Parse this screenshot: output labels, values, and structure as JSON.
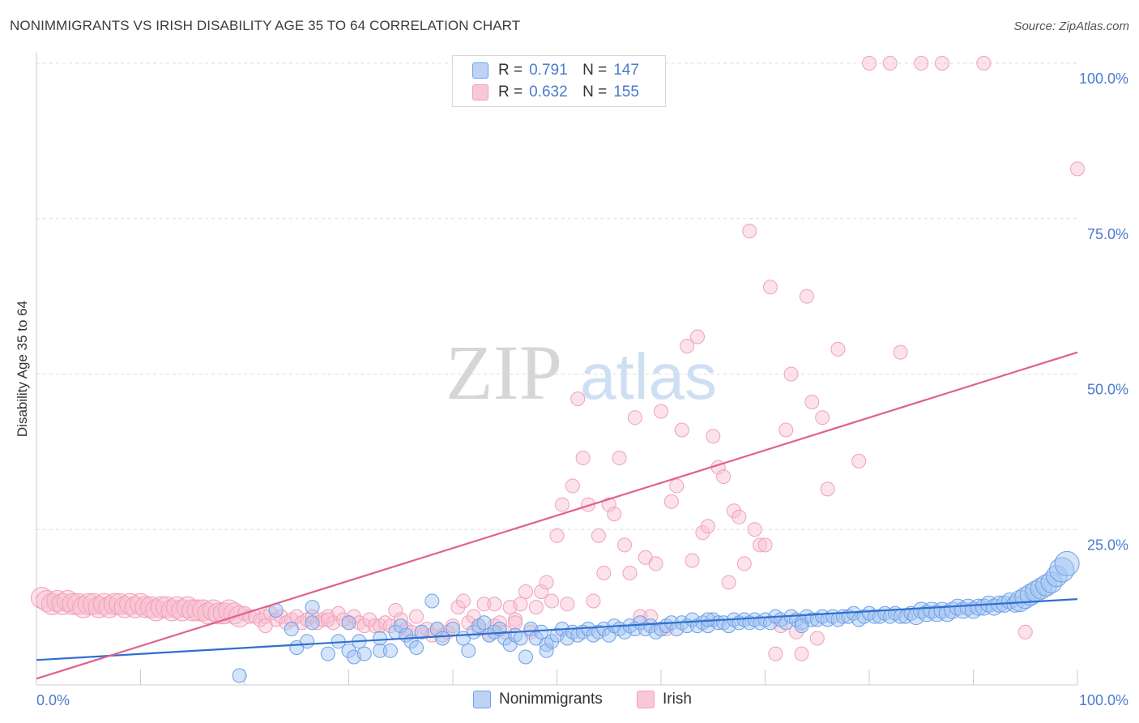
{
  "title": "NONIMMIGRANTS VS IRISH DISABILITY AGE 35 TO 64 CORRELATION CHART",
  "source": "Source: ZipAtlas.com",
  "watermark": {
    "zip": "ZIP",
    "atlas": "atlas"
  },
  "legend": {
    "r_label": "R =",
    "n_label": "N =",
    "entries": [
      {
        "r": "0.791",
        "n": "147"
      },
      {
        "r": "0.632",
        "n": "155"
      }
    ]
  },
  "chart_data": {
    "type": "scatter",
    "title": "NONIMMIGRANTS VS IRISH DISABILITY AGE 35 TO 64 CORRELATION CHART",
    "xlabel": "",
    "ylabel": "Disability Age 35 to 64",
    "xlim": [
      0,
      100
    ],
    "ylim": [
      0,
      100
    ],
    "x_tick_labels": [
      "0.0%",
      "100.0%"
    ],
    "y_ticks": [
      25,
      50,
      75,
      100
    ],
    "y_tick_labels": [
      "25.0%",
      "50.0%",
      "75.0%",
      "100.0%"
    ],
    "colors": {
      "nonimmigrants": "#6f9fe6",
      "irish": "#f0a0b8",
      "blue_line": "#2f6fd0",
      "pink_line": "#e0608f"
    },
    "series": [
      {
        "name": "Nonimmigrants",
        "trendline": {
          "x": [
            0,
            100
          ],
          "y": [
            4.0,
            13.8
          ]
        },
        "points": [
          [
            19.5,
            1.5
          ],
          [
            23,
            12
          ],
          [
            24.5,
            9
          ],
          [
            25,
            6
          ],
          [
            26,
            7
          ],
          [
            26.5,
            10
          ],
          [
            26.5,
            12.5
          ],
          [
            28,
            5
          ],
          [
            29,
            7
          ],
          [
            30,
            10
          ],
          [
            30,
            5.5
          ],
          [
            30.5,
            4.5
          ],
          [
            31,
            7
          ],
          [
            31.5,
            5
          ],
          [
            33,
            7.5
          ],
          [
            33,
            5.5
          ],
          [
            34,
            5.5
          ],
          [
            34.5,
            8.5
          ],
          [
            35,
            9.5
          ],
          [
            35.5,
            8
          ],
          [
            36,
            7
          ],
          [
            36.5,
            6
          ],
          [
            37,
            8.5
          ],
          [
            38,
            13.5
          ],
          [
            38.5,
            9
          ],
          [
            39,
            7.5
          ],
          [
            40,
            9
          ],
          [
            41,
            7.5
          ],
          [
            41.5,
            5.5
          ],
          [
            42,
            8.5
          ],
          [
            42.5,
            9.5
          ],
          [
            43,
            10
          ],
          [
            43.5,
            8
          ],
          [
            44,
            8.5
          ],
          [
            44.5,
            9
          ],
          [
            45,
            7.5
          ],
          [
            45.5,
            6.5
          ],
          [
            46,
            8
          ],
          [
            46.5,
            7.5
          ],
          [
            47,
            4.5
          ],
          [
            47.5,
            9
          ],
          [
            48,
            7.5
          ],
          [
            48.5,
            8.5
          ],
          [
            49,
            6.5
          ],
          [
            49,
            5.5
          ],
          [
            49.5,
            7
          ],
          [
            50,
            8
          ],
          [
            50.5,
            9
          ],
          [
            51,
            7.5
          ],
          [
            51.5,
            8.5
          ],
          [
            52,
            8
          ],
          [
            52.5,
            8.5
          ],
          [
            53,
            9
          ],
          [
            53.5,
            8
          ],
          [
            54,
            8.5
          ],
          [
            54.5,
            9
          ],
          [
            55,
            8
          ],
          [
            55.5,
            9.5
          ],
          [
            56,
            9
          ],
          [
            56.5,
            8.5
          ],
          [
            57,
            9.5
          ],
          [
            57.5,
            9
          ],
          [
            58,
            10
          ],
          [
            58.5,
            9
          ],
          [
            59,
            9.5
          ],
          [
            59.5,
            8.5
          ],
          [
            60,
            9
          ],
          [
            60.5,
            9.5
          ],
          [
            61,
            10
          ],
          [
            61.5,
            9
          ],
          [
            62,
            10
          ],
          [
            62.5,
            9.5
          ],
          [
            63,
            10.5
          ],
          [
            63.5,
            9.5
          ],
          [
            64,
            10
          ],
          [
            64.5,
            9.5
          ],
          [
            65,
            10.5
          ],
          [
            65.5,
            10
          ],
          [
            66,
            10
          ],
          [
            66.5,
            9.5
          ],
          [
            67,
            10.5
          ],
          [
            67.5,
            10
          ],
          [
            68,
            10.5
          ],
          [
            68.5,
            10
          ],
          [
            69,
            10.5
          ],
          [
            69.5,
            10
          ],
          [
            70,
            10.5
          ],
          [
            70.5,
            10
          ],
          [
            71,
            11
          ],
          [
            71.5,
            10.5
          ],
          [
            72,
            10
          ],
          [
            72.5,
            11
          ],
          [
            73,
            10.5
          ],
          [
            73.5,
            10
          ],
          [
            74,
            11
          ],
          [
            74.5,
            10.5
          ],
          [
            75,
            10.5
          ],
          [
            75.5,
            11
          ],
          [
            76,
            10.5
          ],
          [
            76.5,
            11
          ],
          [
            77,
            10.5
          ],
          [
            77.5,
            11
          ],
          [
            78,
            11
          ],
          [
            78.5,
            11.5
          ],
          [
            79,
            10.5
          ],
          [
            79.5,
            11
          ],
          [
            80,
            11.5
          ],
          [
            80.5,
            11
          ],
          [
            81,
            11
          ],
          [
            81.5,
            11.5
          ],
          [
            82,
            11
          ],
          [
            82.5,
            11.5
          ],
          [
            83,
            11
          ],
          [
            83.5,
            11
          ],
          [
            84,
            11.5
          ],
          [
            84.5,
            11
          ],
          [
            85,
            12
          ],
          [
            85.5,
            11.5
          ],
          [
            86,
            12
          ],
          [
            86.5,
            11.5
          ],
          [
            87,
            12
          ],
          [
            87.5,
            11.5
          ],
          [
            88,
            12
          ],
          [
            88.5,
            12.5
          ],
          [
            89,
            12
          ],
          [
            89.5,
            12.5
          ],
          [
            90,
            12
          ],
          [
            90.5,
            12.5
          ],
          [
            91,
            12.5
          ],
          [
            91.5,
            13
          ],
          [
            92,
            12.5
          ],
          [
            92.5,
            13
          ],
          [
            93,
            13
          ],
          [
            93.5,
            13.5
          ],
          [
            94,
            13
          ],
          [
            94.5,
            13.5
          ],
          [
            95,
            14
          ],
          [
            95.5,
            14.5
          ],
          [
            96,
            15
          ],
          [
            96.5,
            15.5
          ],
          [
            97,
            16
          ],
          [
            97.5,
            16.5
          ],
          [
            98,
            17.5
          ],
          [
            98.5,
            18.5
          ],
          [
            99,
            19.5
          ],
          [
            73.5,
            9.5
          ],
          [
            64.5,
            10.5
          ]
        ]
      },
      {
        "name": "Irish",
        "trendline": {
          "x": [
            0,
            100
          ],
          "y": [
            1.0,
            53.5
          ]
        },
        "points": [
          [
            0.5,
            14
          ],
          [
            1,
            13.5
          ],
          [
            1.5,
            13
          ],
          [
            2,
            13.5
          ],
          [
            2.5,
            13
          ],
          [
            3,
            13.5
          ],
          [
            3.5,
            13
          ],
          [
            4,
            13
          ],
          [
            4.5,
            12.5
          ],
          [
            5,
            13
          ],
          [
            5.5,
            13
          ],
          [
            6,
            12.5
          ],
          [
            6.5,
            13
          ],
          [
            7,
            12.5
          ],
          [
            7.5,
            13
          ],
          [
            8,
            13
          ],
          [
            8.5,
            12.5
          ],
          [
            9,
            13
          ],
          [
            9.5,
            12.5
          ],
          [
            10,
            13
          ],
          [
            10.5,
            12.5
          ],
          [
            11,
            12.5
          ],
          [
            11.5,
            12
          ],
          [
            12,
            12.5
          ],
          [
            12.5,
            12.5
          ],
          [
            13,
            12
          ],
          [
            13.5,
            12.5
          ],
          [
            14,
            12
          ],
          [
            14.5,
            12.5
          ],
          [
            15,
            12
          ],
          [
            15.5,
            12
          ],
          [
            16,
            12
          ],
          [
            16.5,
            11.5
          ],
          [
            17,
            12
          ],
          [
            17.5,
            11.5
          ],
          [
            18,
            11.5
          ],
          [
            18.5,
            12
          ],
          [
            19,
            11.5
          ],
          [
            19.5,
            11
          ],
          [
            20,
            11.5
          ],
          [
            20.5,
            11
          ],
          [
            21,
            11
          ],
          [
            21.5,
            10.5
          ],
          [
            22,
            11
          ],
          [
            22.5,
            11.5
          ],
          [
            23,
            10.5
          ],
          [
            23.5,
            11
          ],
          [
            24,
            10
          ],
          [
            24.5,
            10.5
          ],
          [
            25,
            11
          ],
          [
            25.5,
            10
          ],
          [
            26,
            10.5
          ],
          [
            26.5,
            11
          ],
          [
            27,
            10
          ],
          [
            27.5,
            10.5
          ],
          [
            28,
            11
          ],
          [
            28.5,
            10
          ],
          [
            29,
            11.5
          ],
          [
            29.5,
            10.5
          ],
          [
            30,
            10
          ],
          [
            30.5,
            11
          ],
          [
            31,
            10
          ],
          [
            31.5,
            9.5
          ],
          [
            32,
            10.5
          ],
          [
            32.5,
            9.5
          ],
          [
            33,
            9.5
          ],
          [
            33.5,
            10
          ],
          [
            34,
            9.5
          ],
          [
            34.5,
            12
          ],
          [
            35,
            10.5
          ],
          [
            35.5,
            9
          ],
          [
            36,
            8.5
          ],
          [
            36.5,
            11
          ],
          [
            37,
            8.5
          ],
          [
            37.5,
            9
          ],
          [
            38,
            8
          ],
          [
            38.5,
            9
          ],
          [
            39,
            8
          ],
          [
            39.5,
            8.5
          ],
          [
            40,
            9.5
          ],
          [
            40.5,
            12.5
          ],
          [
            41,
            13.5
          ],
          [
            41.5,
            10
          ],
          [
            42,
            11
          ],
          [
            42.5,
            9
          ],
          [
            43,
            13
          ],
          [
            43.5,
            8
          ],
          [
            44,
            9.5
          ],
          [
            44.5,
            10
          ],
          [
            45,
            8.5
          ],
          [
            45.5,
            12.5
          ],
          [
            46,
            10.5
          ],
          [
            46.5,
            13
          ],
          [
            47,
            15
          ],
          [
            47.5,
            8.5
          ],
          [
            48,
            12.5
          ],
          [
            48.5,
            15
          ],
          [
            49,
            16.5
          ],
          [
            49.5,
            13.5
          ],
          [
            50,
            24
          ],
          [
            50.5,
            29
          ],
          [
            51,
            13
          ],
          [
            51.5,
            32
          ],
          [
            52,
            46
          ],
          [
            52.5,
            36.5
          ],
          [
            53,
            29
          ],
          [
            53.5,
            13.5
          ],
          [
            54,
            24
          ],
          [
            54.5,
            18
          ],
          [
            55,
            29
          ],
          [
            55.5,
            27.5
          ],
          [
            56,
            36.5
          ],
          [
            56.5,
            22.5
          ],
          [
            57,
            18
          ],
          [
            57.5,
            43
          ],
          [
            58,
            11
          ],
          [
            58.5,
            20.5
          ],
          [
            59,
            11
          ],
          [
            59.5,
            19.5
          ],
          [
            60,
            44
          ],
          [
            60.5,
            9
          ],
          [
            61,
            29.5
          ],
          [
            61.5,
            32
          ],
          [
            62,
            41
          ],
          [
            62.5,
            54.5
          ],
          [
            63,
            20
          ],
          [
            63.5,
            56
          ],
          [
            64,
            24.5
          ],
          [
            64.5,
            25.5
          ],
          [
            65,
            40
          ],
          [
            65.5,
            35
          ],
          [
            66,
            33.5
          ],
          [
            66.5,
            16.5
          ],
          [
            67,
            28
          ],
          [
            67.5,
            27
          ],
          [
            68,
            19.5
          ],
          [
            68.5,
            73
          ],
          [
            69,
            25
          ],
          [
            69.5,
            22.5
          ],
          [
            70,
            22.5
          ],
          [
            70.5,
            64
          ],
          [
            71,
            5
          ],
          [
            71.5,
            9.5
          ],
          [
            72,
            41
          ],
          [
            72.5,
            50
          ],
          [
            73,
            8.5
          ],
          [
            73.5,
            5
          ],
          [
            74,
            62.5
          ],
          [
            74.5,
            45.5
          ],
          [
            75,
            7.5
          ],
          [
            75.5,
            43
          ],
          [
            76,
            31.5
          ],
          [
            77,
            54
          ],
          [
            79,
            36
          ],
          [
            80,
            100
          ],
          [
            82,
            100
          ],
          [
            83,
            53.5
          ],
          [
            85,
            100
          ],
          [
            87,
            100
          ],
          [
            91,
            100
          ],
          [
            95,
            8.5
          ],
          [
            100,
            83
          ],
          [
            22,
            9.5
          ],
          [
            28,
            10.5
          ],
          [
            44,
            13
          ],
          [
            46,
            10
          ]
        ]
      }
    ]
  }
}
